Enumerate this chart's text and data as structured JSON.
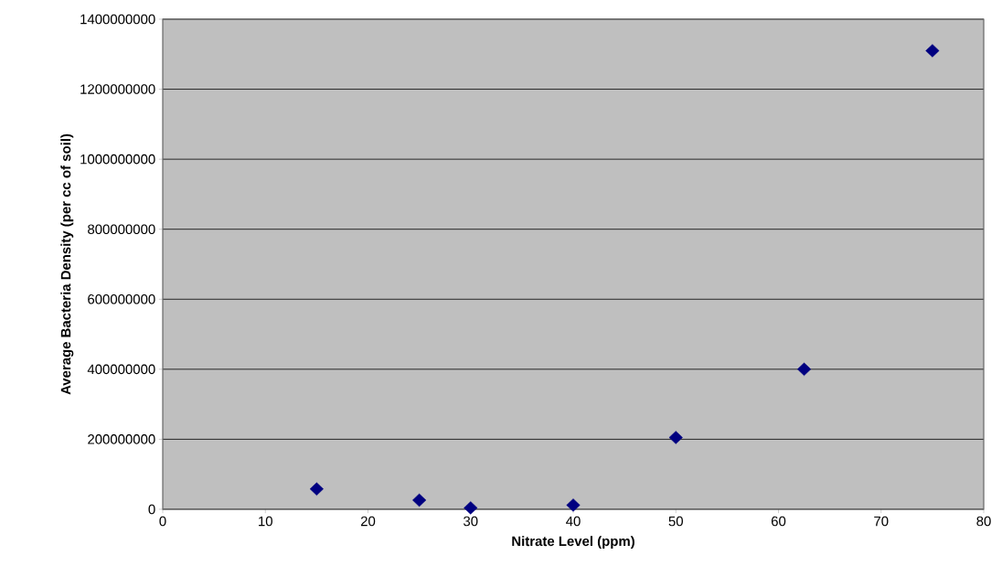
{
  "chart_data": {
    "type": "scatter",
    "xlabel": "Nitrate Level (ppm)",
    "ylabel": "Average Bacteria Density (per cc of soil)",
    "x": [
      15,
      25,
      30,
      40,
      50,
      62.5,
      75
    ],
    "values": [
      58000000,
      26000000,
      4000000,
      12000000,
      205000000,
      400000000,
      1310000000
    ],
    "color": "#000080",
    "marker": "diamond",
    "grid": "y",
    "xlim": [
      0,
      80
    ],
    "xticks": [
      0,
      10,
      20,
      30,
      40,
      50,
      60,
      70,
      80
    ],
    "ylim": [
      0,
      1400000000
    ],
    "yticks": [
      0,
      200000000,
      400000000,
      600000000,
      800000000,
      1000000000,
      1200000000,
      1400000000
    ]
  }
}
